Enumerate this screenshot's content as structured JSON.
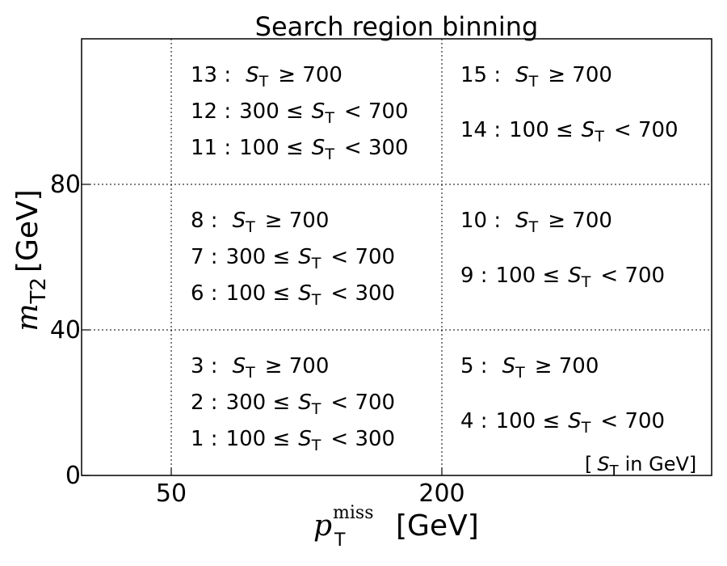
{
  "chart_data": {
    "type": "table",
    "title": "Search region binning",
    "xlabel": {
      "symbol": "p",
      "sub": "T",
      "sup": "miss",
      "unit": "[GeV]"
    },
    "ylabel": {
      "symbol": "m",
      "sub": "T2",
      "unit": "[GeV]"
    },
    "x_ticks": [
      "50",
      "200"
    ],
    "y_ticks": [
      "0",
      "40",
      "80"
    ],
    "x_bin_edges": [
      50,
      200
    ],
    "y_bin_edges": [
      0,
      40,
      80
    ],
    "grid": "dotted",
    "note": {
      "open": "[",
      "symbol": "S",
      "sub": "T",
      "text": "in GeV]"
    },
    "cells": [
      {
        "x_bin": 0,
        "y_bin": 2,
        "lines": [
          {
            "id": "13",
            "lo": "",
            "hi": "≥ 700"
          },
          {
            "id": "12",
            "lo": "300 ≤",
            "hi": "< 700"
          },
          {
            "id": "11",
            "lo": "100 ≤",
            "hi": "< 300"
          }
        ]
      },
      {
        "x_bin": 1,
        "y_bin": 2,
        "lines": [
          {
            "id": "15",
            "lo": "",
            "hi": "≥ 700"
          },
          {
            "id": "14",
            "lo": "100 ≤",
            "hi": "< 700"
          }
        ]
      },
      {
        "x_bin": 0,
        "y_bin": 1,
        "lines": [
          {
            "id": "8",
            "lo": "",
            "hi": "≥ 700"
          },
          {
            "id": "7",
            "lo": "300 ≤",
            "hi": "< 700"
          },
          {
            "id": "6",
            "lo": "100 ≤",
            "hi": "< 300"
          }
        ]
      },
      {
        "x_bin": 1,
        "y_bin": 1,
        "lines": [
          {
            "id": "10",
            "lo": "",
            "hi": "≥ 700"
          },
          {
            "id": "9",
            "lo": "100 ≤",
            "hi": "< 700"
          }
        ]
      },
      {
        "x_bin": 0,
        "y_bin": 0,
        "lines": [
          {
            "id": "3",
            "lo": "",
            "hi": "≥ 700"
          },
          {
            "id": "2",
            "lo": "300 ≤",
            "hi": "< 700"
          },
          {
            "id": "1",
            "lo": "100 ≤",
            "hi": "< 300"
          }
        ]
      },
      {
        "x_bin": 1,
        "y_bin": 0,
        "lines": [
          {
            "id": "5",
            "lo": "",
            "hi": "≥ 700"
          },
          {
            "id": "4",
            "lo": "100 ≤",
            "hi": "< 700"
          }
        ]
      }
    ],
    "st_symbol": "S",
    "st_sub": "T",
    "colors": {
      "frame": "#000000",
      "grid": "#000000",
      "text": "#000000"
    }
  }
}
